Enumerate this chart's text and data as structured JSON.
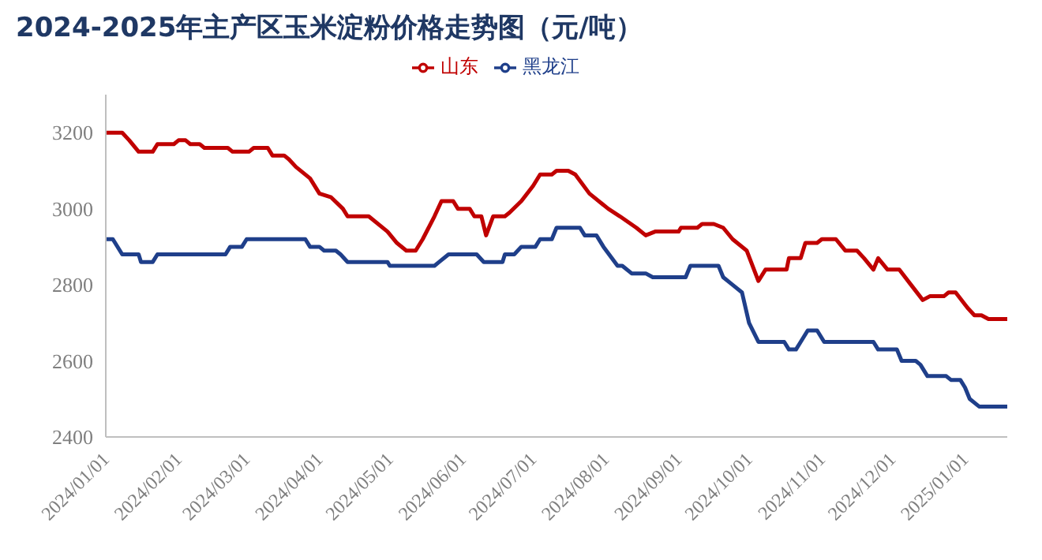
{
  "chart_data": {
    "type": "line",
    "title": "2024-2025年主产区玉米淀粉价格走势图（元/吨）",
    "xlim": [
      "2024-01-01",
      "2025-01-19"
    ],
    "xticks": [
      {
        "value": "2024-01-01",
        "label": "2024/01/01"
      },
      {
        "value": "2024-02-01",
        "label": "2024/02/01"
      },
      {
        "value": "2024-03-01",
        "label": "2024/03/01"
      },
      {
        "value": "2024-04-01",
        "label": "2024/04/01"
      },
      {
        "value": "2024-05-01",
        "label": "2024/05/01"
      },
      {
        "value": "2024-06-01",
        "label": "2024/06/01"
      },
      {
        "value": "2024-07-01",
        "label": "2024/07/01"
      },
      {
        "value": "2024-08-01",
        "label": "2024/08/01"
      },
      {
        "value": "2024-09-01",
        "label": "2024/09/01"
      },
      {
        "value": "2024-10-01",
        "label": "2024/10/01"
      },
      {
        "value": "2024-11-01",
        "label": "2024/11/01"
      },
      {
        "value": "2024-12-01",
        "label": "2024/12/01"
      },
      {
        "value": "2025-01-01",
        "label": "2025/01/01"
      }
    ],
    "ylim": [
      2400,
      3300
    ],
    "yticks": [
      2400,
      2600,
      2800,
      3000,
      3200
    ],
    "grid": false,
    "legend": "top",
    "line_style": "solid",
    "series": [
      {
        "name": "山东",
        "color": "#c00000",
        "x": [
          "2024-01-01",
          "2024-01-08",
          "2024-01-11",
          "2024-01-15",
          "2024-01-21",
          "2024-01-23",
          "2024-01-30",
          "2024-02-01",
          "2024-02-04",
          "2024-02-06",
          "2024-02-10",
          "2024-02-12",
          "2024-02-22",
          "2024-02-24",
          "2024-03-02",
          "2024-03-04",
          "2024-03-10",
          "2024-03-12",
          "2024-03-17",
          "2024-03-19",
          "2024-03-22",
          "2024-03-28",
          "2024-04-01",
          "2024-04-06",
          "2024-04-11",
          "2024-04-13",
          "2024-04-22",
          "2024-04-30",
          "2024-05-04",
          "2024-05-08",
          "2024-05-12",
          "2024-05-15",
          "2024-05-20",
          "2024-05-23",
          "2024-05-28",
          "2024-05-30",
          "2024-06-04",
          "2024-06-06",
          "2024-06-09",
          "2024-06-11",
          "2024-06-14",
          "2024-06-19",
          "2024-06-21",
          "2024-06-26",
          "2024-07-01",
          "2024-07-04",
          "2024-07-09",
          "2024-07-11",
          "2024-07-16",
          "2024-07-19",
          "2024-07-25",
          "2024-08-02",
          "2024-08-07",
          "2024-08-14",
          "2024-08-18",
          "2024-08-22",
          "2024-09-01",
          "2024-09-02",
          "2024-09-09",
          "2024-09-11",
          "2024-09-16",
          "2024-09-20",
          "2024-09-24",
          "2024-09-30",
          "2024-10-05",
          "2024-10-08",
          "2024-10-17",
          "2024-10-18",
          "2024-10-23",
          "2024-10-25",
          "2024-10-30",
          "2024-11-01",
          "2024-11-07",
          "2024-11-11",
          "2024-11-16",
          "2024-11-19",
          "2024-11-23",
          "2024-11-25",
          "2024-11-29",
          "2024-12-04",
          "2024-12-09",
          "2024-12-14",
          "2024-12-17",
          "2024-12-23",
          "2024-12-25",
          "2024-12-28",
          "2025-01-02",
          "2025-01-05",
          "2025-01-08",
          "2025-01-11",
          "2025-01-19"
        ],
        "values": [
          3200,
          3200,
          3180,
          3150,
          3150,
          3170,
          3170,
          3180,
          3180,
          3170,
          3170,
          3160,
          3160,
          3150,
          3150,
          3160,
          3160,
          3140,
          3140,
          3130,
          3110,
          3080,
          3040,
          3030,
          3000,
          2980,
          2980,
          2940,
          2910,
          2890,
          2890,
          2920,
          2980,
          3020,
          3020,
          3000,
          3000,
          2980,
          2980,
          2930,
          2980,
          2980,
          2990,
          3020,
          3060,
          3090,
          3090,
          3100,
          3100,
          3090,
          3040,
          3000,
          2980,
          2950,
          2930,
          2940,
          2940,
          2950,
          2950,
          2960,
          2960,
          2950,
          2920,
          2890,
          2810,
          2840,
          2840,
          2870,
          2870,
          2910,
          2910,
          2920,
          2920,
          2890,
          2890,
          2870,
          2840,
          2870,
          2840,
          2840,
          2800,
          2760,
          2770,
          2770,
          2780,
          2780,
          2740,
          2720,
          2720,
          2710,
          2710
        ]
      },
      {
        "name": "黑龙江",
        "color": "#1f3f8a",
        "x": [
          "2024-01-01",
          "2024-01-04",
          "2024-01-08",
          "2024-01-15",
          "2024-01-16",
          "2024-01-21",
          "2024-01-23",
          "2024-02-21",
          "2024-02-23",
          "2024-02-28",
          "2024-03-01",
          "2024-03-26",
          "2024-03-28",
          "2024-04-01",
          "2024-04-03",
          "2024-04-08",
          "2024-04-10",
          "2024-04-13",
          "2024-04-30",
          "2024-05-01",
          "2024-05-20",
          "2024-05-22",
          "2024-05-26",
          "2024-06-07",
          "2024-06-10",
          "2024-06-18",
          "2024-06-19",
          "2024-06-23",
          "2024-06-26",
          "2024-07-02",
          "2024-07-04",
          "2024-07-09",
          "2024-07-11",
          "2024-07-21",
          "2024-07-23",
          "2024-07-28",
          "2024-07-31",
          "2024-08-06",
          "2024-08-08",
          "2024-08-12",
          "2024-08-18",
          "2024-08-21",
          "2024-09-04",
          "2024-09-06",
          "2024-09-18",
          "2024-09-20",
          "2024-09-24",
          "2024-09-28",
          "2024-10-01",
          "2024-10-05",
          "2024-10-16",
          "2024-10-18",
          "2024-10-21",
          "2024-10-23",
          "2024-10-26",
          "2024-10-30",
          "2024-11-02",
          "2024-11-23",
          "2024-11-25",
          "2024-12-03",
          "2024-12-05",
          "2024-12-11",
          "2024-12-13",
          "2024-12-16",
          "2024-12-24",
          "2024-12-26",
          "2024-12-30",
          "2025-01-01",
          "2025-01-03",
          "2025-01-07",
          "2025-01-19"
        ],
        "values": [
          2920,
          2920,
          2880,
          2880,
          2860,
          2860,
          2880,
          2880,
          2900,
          2900,
          2920,
          2920,
          2900,
          2900,
          2890,
          2890,
          2880,
          2860,
          2860,
          2850,
          2850,
          2860,
          2880,
          2880,
          2860,
          2860,
          2880,
          2880,
          2900,
          2900,
          2920,
          2920,
          2950,
          2950,
          2930,
          2930,
          2900,
          2850,
          2850,
          2830,
          2830,
          2820,
          2820,
          2850,
          2850,
          2820,
          2800,
          2780,
          2700,
          2650,
          2650,
          2630,
          2630,
          2650,
          2680,
          2680,
          2650,
          2650,
          2630,
          2630,
          2600,
          2600,
          2590,
          2560,
          2560,
          2550,
          2550,
          2530,
          2500,
          2480,
          2480
        ]
      }
    ]
  }
}
